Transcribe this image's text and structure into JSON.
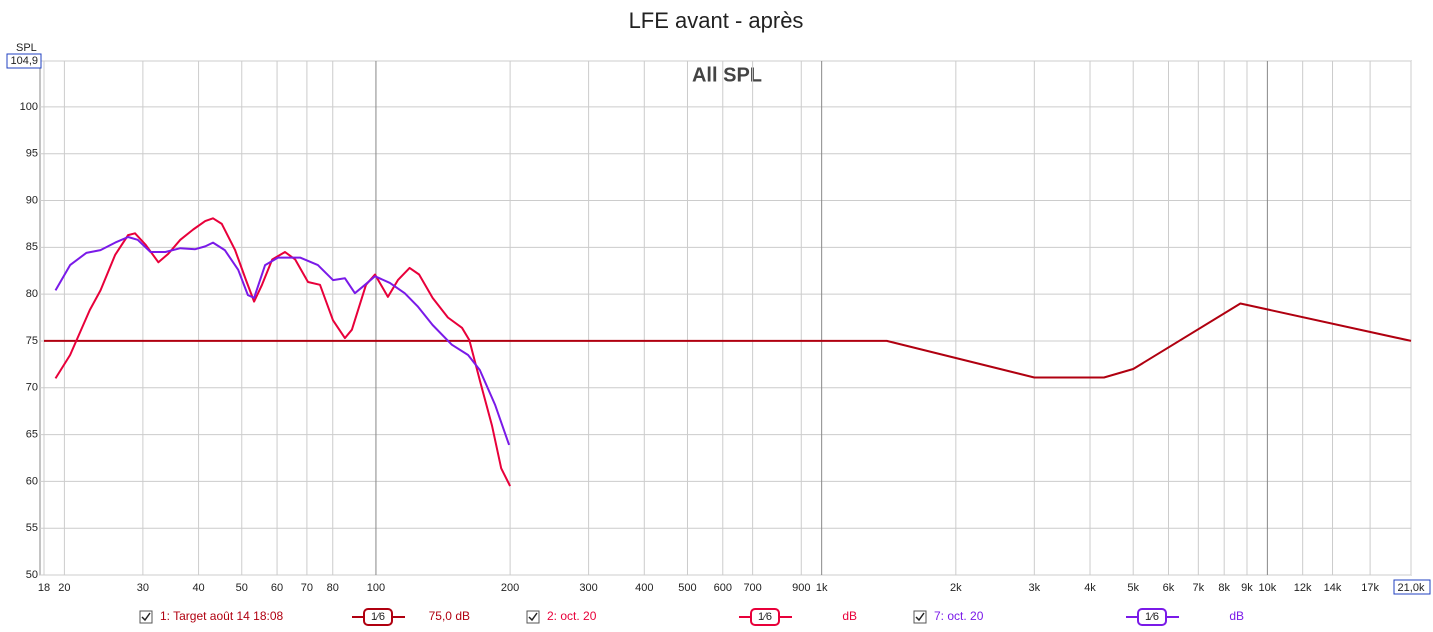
{
  "chart_data": {
    "type": "line",
    "title": "LFE avant - après",
    "subtitle": "All SPL",
    "y_label": "SPL",
    "log_x": true,
    "grid": true,
    "xlim": [
      18,
      21000
    ],
    "ylim": [
      50,
      104.9
    ],
    "xticks": [
      18,
      20,
      30,
      40,
      50,
      60,
      70,
      80,
      100,
      200,
      300,
      400,
      500,
      600,
      700,
      900,
      {
        "value": 1000,
        "label": "1k"
      },
      {
        "value": 2000,
        "label": "2k"
      },
      {
        "value": 3000,
        "label": "3k"
      },
      {
        "value": 4000,
        "label": "4k"
      },
      {
        "value": 5000,
        "label": "5k"
      },
      {
        "value": 6000,
        "label": "6k"
      },
      {
        "value": 7000,
        "label": "7k"
      },
      {
        "value": 8000,
        "label": "8k"
      },
      {
        "value": 9000,
        "label": "9k"
      },
      {
        "value": 10000,
        "label": "10k"
      },
      {
        "value": 12000,
        "label": "12k"
      },
      {
        "value": 14000,
        "label": "14k"
      },
      {
        "value": 17000,
        "label": "17k"
      },
      {
        "value": 21000,
        "label": "21,0k"
      }
    ],
    "yticks": [
      50,
      55,
      60,
      65,
      70,
      75,
      80,
      85,
      90,
      95,
      100,
      {
        "value": 104.9,
        "label": "104,9"
      }
    ],
    "series": [
      {
        "name": "1: Target août 14 18:08",
        "smoothing": "1⁄6",
        "offset": "75,0 dB",
        "color": "#b00010",
        "x": [
          18,
          1400,
          3000,
          4300,
          5000,
          8700,
          21000
        ],
        "values": [
          75,
          75,
          71.1,
          71.1,
          72,
          79,
          75
        ]
      },
      {
        "name": "2: oct. 20",
        "smoothing": "1⁄6",
        "offset": "dB",
        "color": "#e8003a",
        "x": [
          19.1,
          20.6,
          22.8,
          24.1,
          26,
          27.8,
          28.8,
          30.4,
          32.5,
          34.2,
          36.4,
          38.9,
          41.4,
          43.1,
          45.1,
          48.3,
          51.1,
          53.3,
          55.5,
          58.5,
          62.5,
          65.9,
          70.4,
          74.9,
          80.1,
          85.2,
          88.3,
          95,
          99.5,
          106.4,
          112,
          119,
          125,
          134,
          145,
          156,
          162,
          171,
          182,
          191,
          200
        ],
        "values": [
          71,
          73.5,
          78.3,
          80.4,
          84.2,
          86.3,
          86.5,
          85.3,
          83.4,
          84.3,
          85.8,
          86.9,
          87.8,
          88.1,
          87.5,
          84.7,
          81.5,
          79.2,
          81,
          83.7,
          84.5,
          83.7,
          81.3,
          81,
          77.2,
          75.3,
          76.2,
          81,
          82.1,
          79.7,
          81.5,
          82.8,
          82.1,
          79.6,
          77.5,
          76.4,
          75.1,
          70.8,
          66,
          61.4,
          59.5
        ]
      },
      {
        "name": "7: oct. 20",
        "smoothing": "1⁄6",
        "offset": "dB",
        "color": "#7a1ae8",
        "x": [
          19.1,
          20.6,
          22.4,
          24.1,
          26,
          27.8,
          29.2,
          31.2,
          33.7,
          36.4,
          39.3,
          41.4,
          43.1,
          45.8,
          49.1,
          51.6,
          53.3,
          56.4,
          60.3,
          67.6,
          74.1,
          80.1,
          85.2,
          89.7,
          94.5,
          99.5,
          107.5,
          116,
          124,
          134,
          148,
          161,
          171,
          185,
          199
        ],
        "values": [
          80.4,
          83.1,
          84.4,
          84.7,
          85.5,
          86.1,
          85.8,
          84.5,
          84.5,
          84.9,
          84.8,
          85.1,
          85.5,
          84.7,
          82.6,
          79.9,
          79.6,
          83.1,
          83.9,
          83.9,
          83.1,
          81.5,
          81.7,
          80.1,
          81,
          81.9,
          81.2,
          80.1,
          78.7,
          76.7,
          74.6,
          73.5,
          71.9,
          68.2,
          63.9
        ]
      }
    ]
  }
}
